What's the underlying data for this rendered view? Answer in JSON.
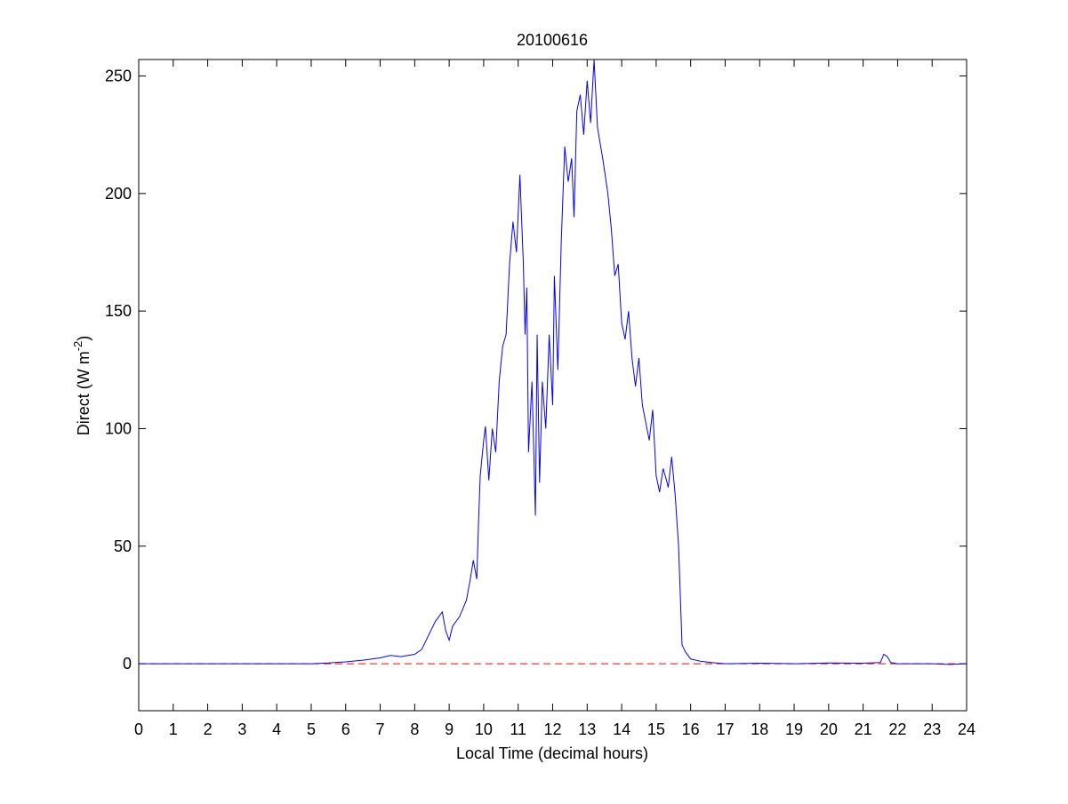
{
  "chart_data": {
    "type": "line",
    "title": "20100616",
    "xlabel": "Local Time (decimal hours)",
    "ylabel": [
      "Direct (W m",
      "-2",
      ")"
    ],
    "xlim": [
      0,
      24
    ],
    "xticks": [
      0,
      1,
      2,
      3,
      4,
      5,
      6,
      7,
      8,
      9,
      10,
      11,
      12,
      13,
      14,
      15,
      16,
      17,
      18,
      19,
      20,
      21,
      22,
      23,
      24
    ],
    "ylim": [
      -20,
      257
    ],
    "yticks": [
      0,
      50,
      100,
      150,
      200,
      250
    ],
    "reference_line": {
      "value": 0,
      "color": "#ff0000",
      "style": "dashed"
    },
    "series": [
      {
        "color": "#0000ff",
        "x": [
          0,
          1,
          2,
          3,
          4,
          5,
          5.5,
          6,
          6.5,
          7,
          7.3,
          7.6,
          8,
          8.2,
          8.4,
          8.6,
          8.8,
          8.9,
          9.0,
          9.1,
          9.3,
          9.5,
          9.6,
          9.7,
          9.8,
          9.85,
          9.9,
          10.0,
          10.05,
          10.15,
          10.25,
          10.35,
          10.45,
          10.55,
          10.65,
          10.75,
          10.85,
          10.95,
          11.05,
          11.15,
          11.2,
          11.25,
          11.3,
          11.4,
          11.5,
          11.55,
          11.62,
          11.7,
          11.8,
          11.9,
          12.0,
          12.05,
          12.15,
          12.25,
          12.35,
          12.45,
          12.55,
          12.62,
          12.7,
          12.8,
          12.9,
          13.0,
          13.1,
          13.2,
          13.3,
          13.45,
          13.6,
          13.7,
          13.8,
          13.9,
          14.0,
          14.1,
          14.2,
          14.3,
          14.4,
          14.5,
          14.6,
          14.8,
          14.9,
          15.0,
          15.1,
          15.2,
          15.3,
          15.35,
          15.45,
          15.55,
          15.65,
          15.75,
          15.85,
          16.0,
          16.3,
          16.6,
          17,
          18,
          19,
          20,
          21,
          21.5,
          21.6,
          21.7,
          21.8,
          22,
          23,
          23.5,
          24
        ],
        "values": [
          0,
          0,
          0,
          0,
          0,
          0,
          0.3,
          0.8,
          1.5,
          2.5,
          3.5,
          3,
          4,
          6,
          12,
          18,
          22,
          14,
          10,
          16,
          20,
          27,
          35,
          44,
          36,
          60,
          80,
          95,
          101,
          78,
          100,
          90,
          120,
          135,
          140,
          170,
          188,
          175,
          208,
          170,
          140,
          160,
          90,
          120,
          63,
          140,
          77,
          120,
          100,
          140,
          110,
          165,
          125,
          180,
          220,
          205,
          215,
          190,
          235,
          242,
          225,
          248,
          230,
          257,
          228,
          215,
          200,
          185,
          165,
          170,
          145,
          138,
          150,
          130,
          118,
          130,
          110,
          95,
          108,
          80,
          73,
          83,
          78,
          75,
          88,
          72,
          50,
          8,
          5,
          2,
          1,
          0.5,
          0,
          0.2,
          0,
          0.3,
          0.2,
          0.5,
          4,
          3,
          0.5,
          0,
          0,
          -0.3,
          0
        ]
      }
    ]
  }
}
